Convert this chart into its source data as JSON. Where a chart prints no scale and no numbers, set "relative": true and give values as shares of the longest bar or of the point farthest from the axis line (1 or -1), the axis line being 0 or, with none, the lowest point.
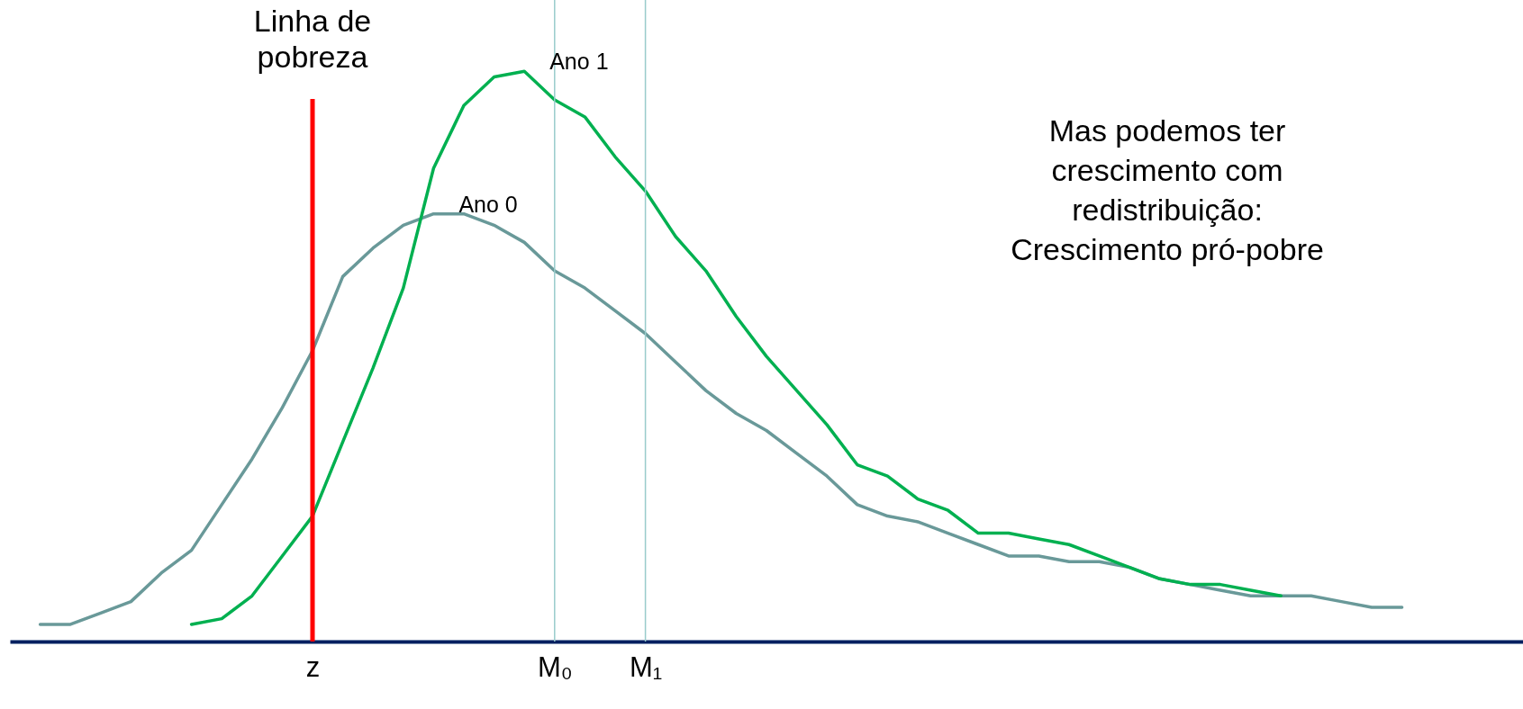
{
  "chart_data": {
    "type": "line",
    "relative": true,
    "grid": false,
    "legend": false,
    "line_style": "solid",
    "marker": "none",
    "categories": [
      null,
      null,
      null,
      null,
      null,
      null,
      null,
      null,
      null,
      null,
      "z",
      null,
      null,
      null,
      null,
      null,
      null,
      null,
      "M₀",
      null,
      null,
      "M₁",
      null,
      null,
      null,
      null,
      null,
      null,
      null,
      null,
      null,
      null,
      null,
      null,
      null,
      null,
      null,
      null,
      null,
      null,
      null,
      null,
      null,
      null,
      null,
      null,
      null,
      null,
      null,
      null,
      null
    ],
    "series": [
      {
        "name": "Ano 0",
        "color": "#699999",
        "values": [
          null,
          0.03,
          0.03,
          0.05,
          0.07,
          0.12,
          0.16,
          0.24,
          0.32,
          0.41,
          0.51,
          0.64,
          0.69,
          0.73,
          0.75,
          0.75,
          0.73,
          0.7,
          0.65,
          0.62,
          0.58,
          0.54,
          0.49,
          0.44,
          0.4,
          0.37,
          0.33,
          0.29,
          0.24,
          0.22,
          0.21,
          0.19,
          0.17,
          0.15,
          0.15,
          0.14,
          0.14,
          0.13,
          0.11,
          0.1,
          0.09,
          0.08,
          0.08,
          0.08,
          0.07,
          0.06,
          0.06,
          null,
          null,
          null,
          null
        ]
      },
      {
        "name": "Ano 1",
        "color": "#00b050",
        "values": [
          null,
          null,
          null,
          null,
          null,
          null,
          0.03,
          0.04,
          0.08,
          0.15,
          0.22,
          0.35,
          0.48,
          0.62,
          0.83,
          0.94,
          0.99,
          1,
          0.95,
          0.92,
          0.85,
          0.79,
          0.71,
          0.65,
          0.57,
          0.5,
          0.44,
          0.38,
          0.31,
          0.29,
          0.25,
          0.23,
          0.19,
          0.19,
          0.18,
          0.17,
          0.15,
          0.13,
          0.11,
          0.1,
          0.1,
          0.09,
          0.08,
          null,
          null,
          null,
          null,
          null,
          null,
          null,
          null
        ]
      }
    ],
    "ref_lines": [
      {
        "axis": "x",
        "value": "z",
        "label": "Linha de\npobreza",
        "color": "#ff0000"
      },
      {
        "axis": "x",
        "value": "M₀",
        "color": "#99cccc"
      },
      {
        "axis": "x",
        "value": "M₁",
        "color": "#99cccc"
      }
    ],
    "annotations": [
      "Mas podemos ter\ncrescimento com\nredistribuição:\nCrescimento pró-pobre"
    ]
  }
}
